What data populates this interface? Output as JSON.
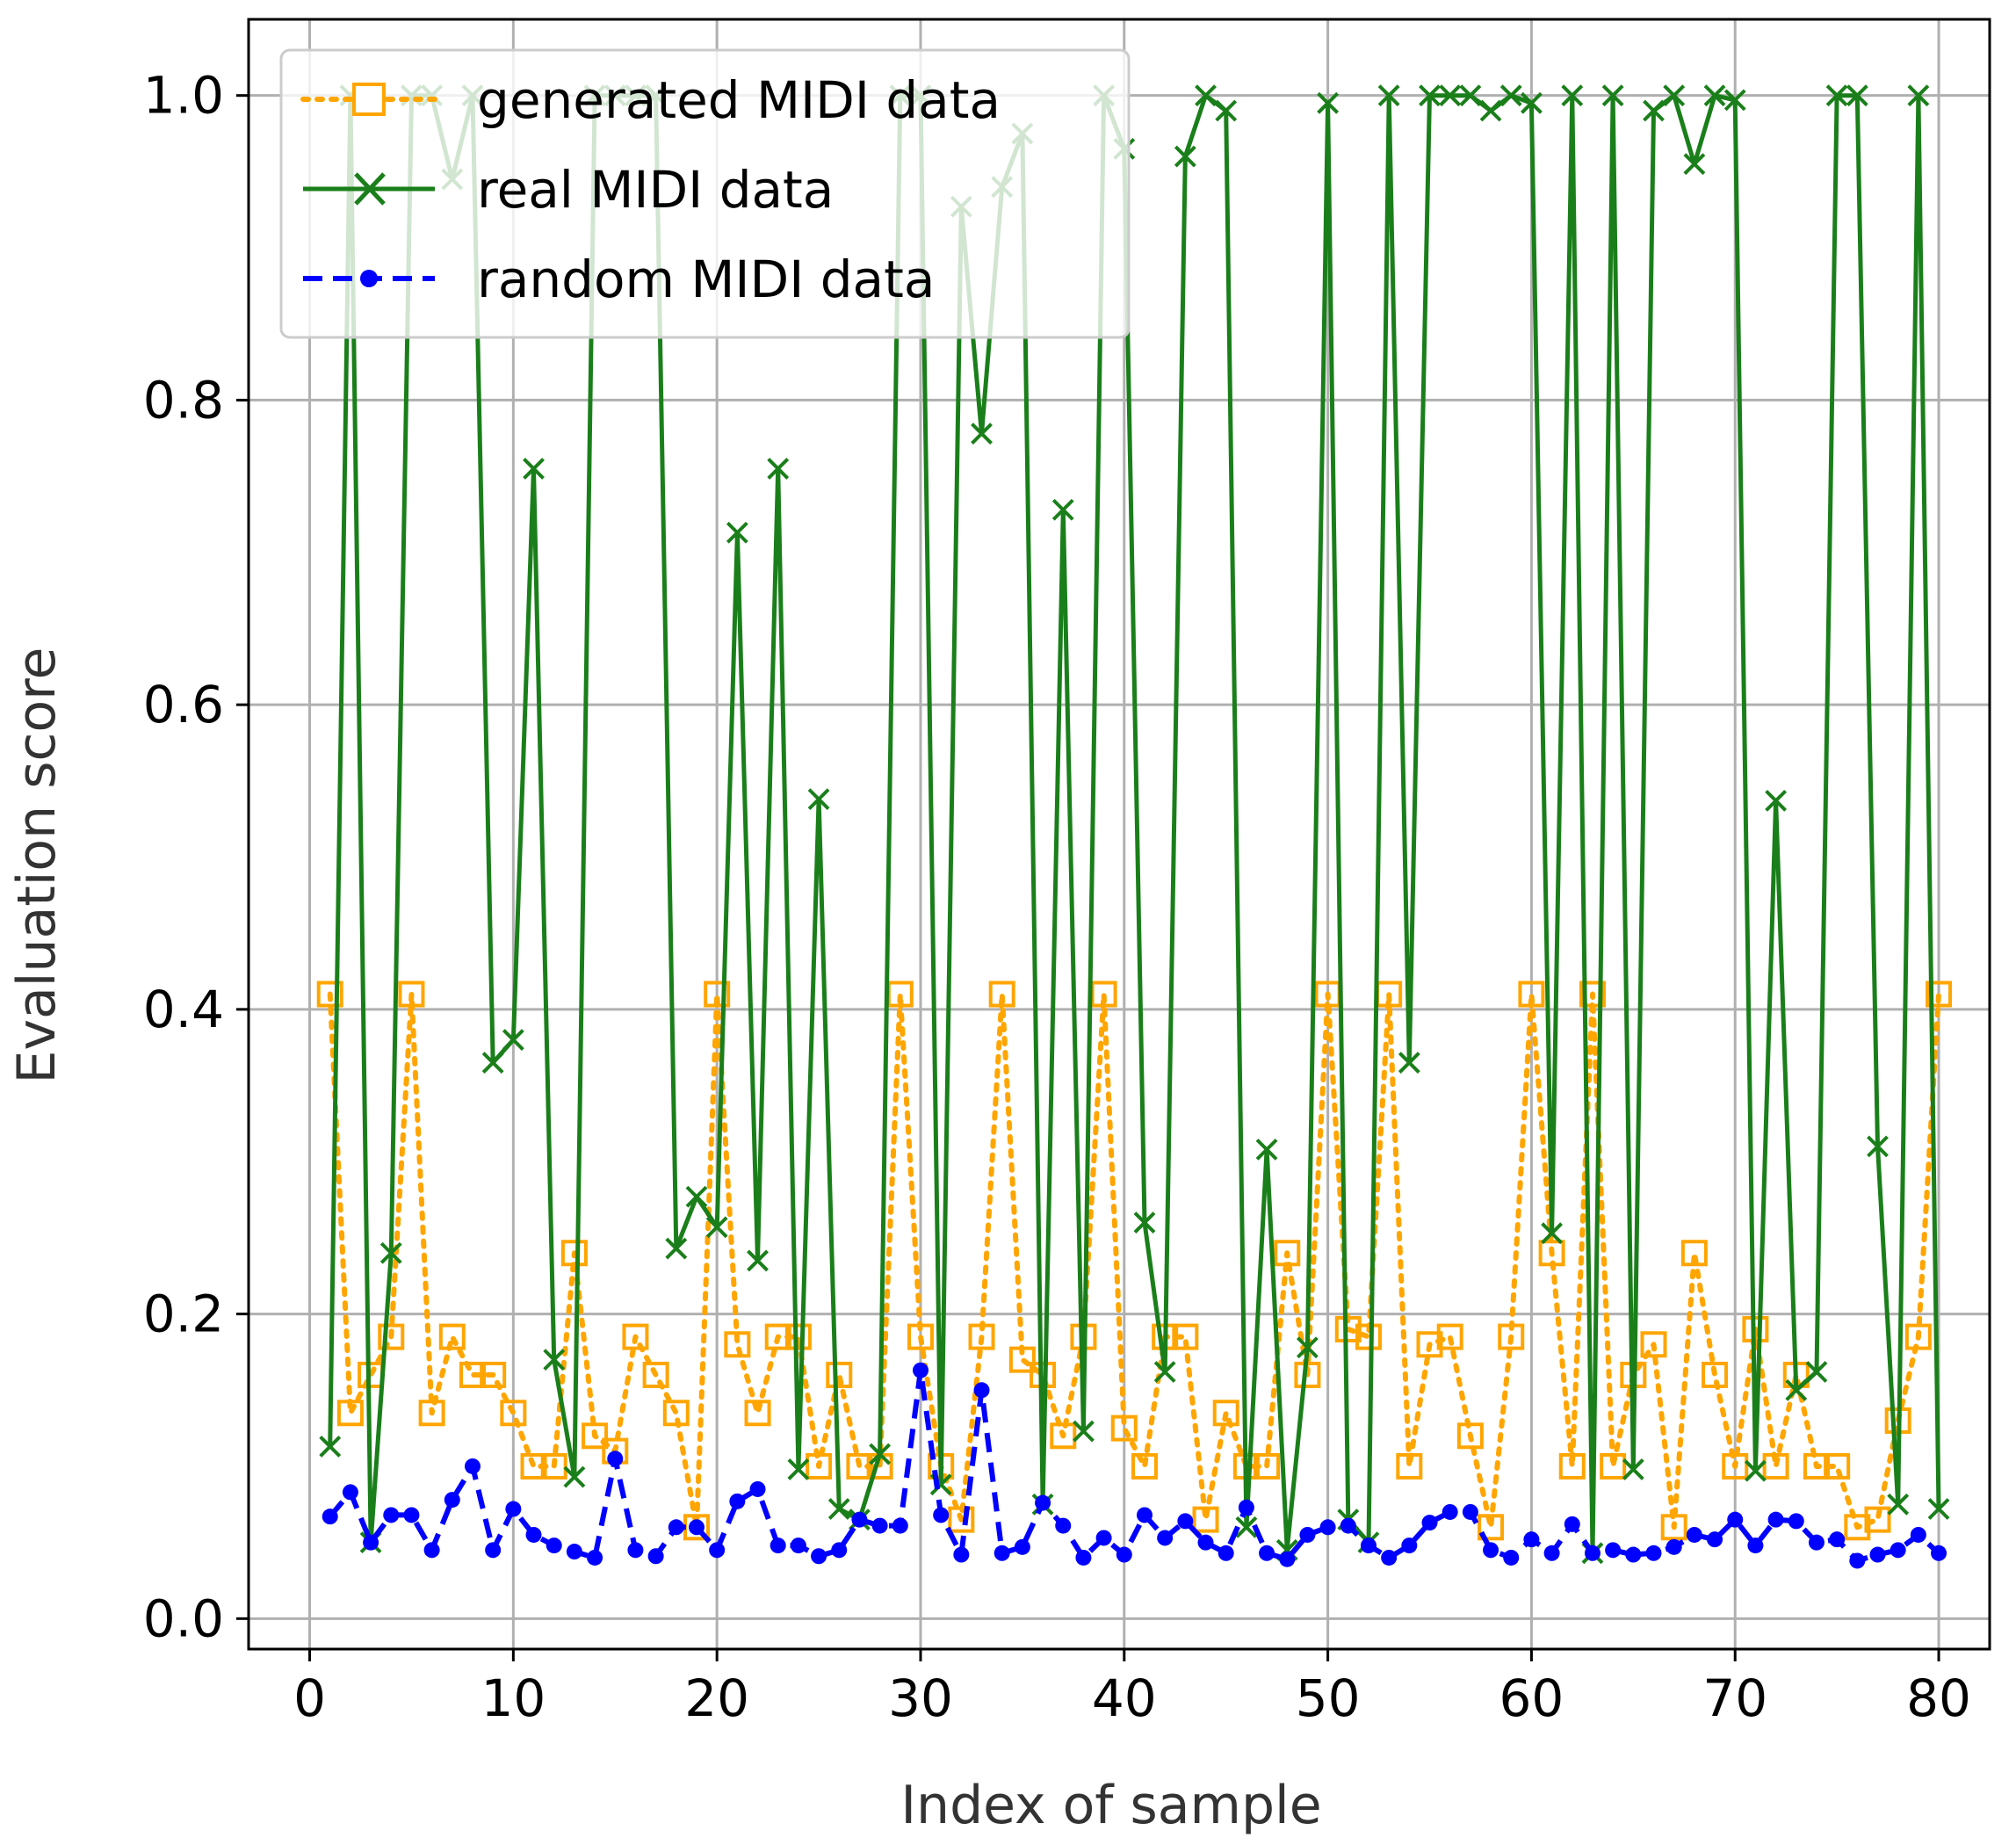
{
  "chart_data": {
    "type": "line",
    "title": "",
    "xlabel": "Index of sample",
    "ylabel": "Evaluation score",
    "xlim": [
      -3,
      82.5
    ],
    "ylim": [
      -0.02,
      1.05
    ],
    "xticks": [
      0,
      10,
      20,
      30,
      40,
      50,
      60,
      70,
      80
    ],
    "yticks": [
      0.0,
      0.2,
      0.4,
      0.6,
      0.8,
      1.0
    ],
    "xtick_labels": [
      "0",
      "10",
      "20",
      "30",
      "40",
      "50",
      "60",
      "70",
      "80"
    ],
    "ytick_labels": [
      "0.0",
      "0.2",
      "0.4",
      "0.6",
      "0.8",
      "1.0"
    ],
    "grid": true,
    "legend_position": "top-left",
    "series": [
      {
        "name": "generated MIDI data",
        "color": "#FFA500",
        "line_style": "dotted",
        "marker": "square",
        "values": [
          0.41,
          0.135,
          0.16,
          0.185,
          0.41,
          0.135,
          0.185,
          0.16,
          0.16,
          0.135,
          0.1,
          0.1,
          0.24,
          0.12,
          0.11,
          0.185,
          0.16,
          0.135,
          0.06,
          0.41,
          0.18,
          0.135,
          0.185,
          0.185,
          0.1,
          0.16,
          0.1,
          0.1,
          0.41,
          0.185,
          0.1,
          0.065,
          0.185,
          0.41,
          0.17,
          0.16,
          0.12,
          0.185,
          0.41,
          0.125,
          0.1,
          0.185,
          0.185,
          0.065,
          0.135,
          0.1,
          0.1,
          0.24,
          0.16,
          0.41,
          0.19,
          0.185,
          0.41,
          0.1,
          0.18,
          0.185,
          0.12,
          0.06,
          0.185,
          0.41,
          0.24,
          0.1,
          0.41,
          0.1,
          0.16,
          0.18,
          0.06,
          0.24,
          0.16,
          0.1,
          0.19,
          0.1,
          0.16,
          0.1,
          0.1,
          0.06,
          0.065,
          0.13,
          0.185,
          0.41
        ]
      },
      {
        "name": "real MIDI data",
        "color": "#1A7F1A",
        "line_style": "solid",
        "marker": "x",
        "values": [
          0.113,
          1.0,
          0.05,
          0.24,
          1.0,
          1.0,
          0.945,
          1.0,
          0.365,
          0.38,
          0.755,
          0.17,
          0.093,
          1.0,
          1.0,
          1.0,
          1.0,
          0.243,
          0.277,
          0.257,
          0.713,
          0.235,
          0.755,
          0.098,
          0.538,
          0.072,
          0.065,
          0.108,
          1.0,
          1.0,
          0.088,
          0.927,
          0.778,
          0.94,
          0.975,
          0.075,
          0.728,
          0.123,
          1.0,
          0.965,
          0.26,
          0.162,
          0.96,
          1.0,
          0.99,
          0.06,
          0.308,
          0.045,
          0.178,
          0.995,
          0.065,
          0.05,
          1.0,
          0.365,
          1.0,
          1.0,
          1.0,
          0.99,
          1.0,
          0.995,
          0.253,
          1.0,
          0.043,
          1.0,
          0.098,
          0.99,
          1.0,
          0.955,
          1.0,
          0.997,
          0.097,
          0.537,
          0.15,
          0.162,
          1.0,
          1.0,
          0.31,
          0.075,
          1.0,
          0.072
        ]
      },
      {
        "name": "random MIDI data",
        "color": "#0000FF",
        "line_style": "dashed",
        "marker": "dot",
        "values": [
          0.067,
          0.083,
          0.05,
          0.068,
          0.068,
          0.045,
          0.078,
          0.1,
          0.045,
          0.072,
          0.055,
          0.048,
          0.044,
          0.04,
          0.105,
          0.045,
          0.041,
          0.06,
          0.06,
          0.045,
          0.077,
          0.085,
          0.048,
          0.048,
          0.041,
          0.045,
          0.065,
          0.061,
          0.061,
          0.163,
          0.068,
          0.042,
          0.15,
          0.043,
          0.047,
          0.076,
          0.061,
          0.04,
          0.053,
          0.042,
          0.068,
          0.053,
          0.064,
          0.05,
          0.043,
          0.073,
          0.043,
          0.039,
          0.055,
          0.06,
          0.061,
          0.048,
          0.04,
          0.048,
          0.063,
          0.07,
          0.07,
          0.045,
          0.04,
          0.052,
          0.043,
          0.062,
          0.043,
          0.045,
          0.042,
          0.043,
          0.047,
          0.055,
          0.052,
          0.065,
          0.048,
          0.065,
          0.064,
          0.05,
          0.052,
          0.038,
          0.042,
          0.045,
          0.055,
          0.043
        ]
      }
    ]
  }
}
